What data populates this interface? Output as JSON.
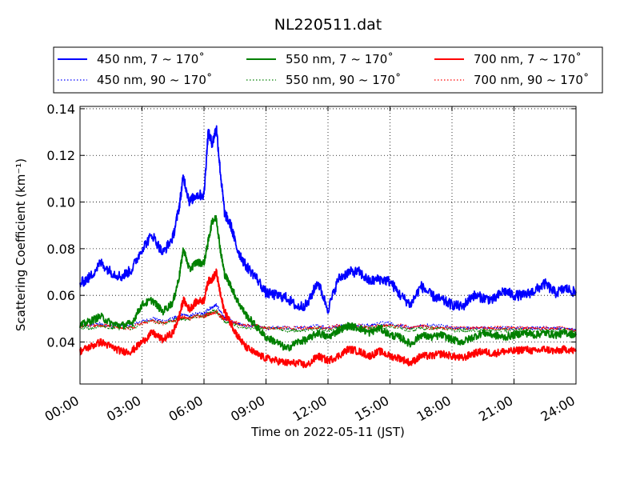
{
  "chart_data": {
    "type": "line",
    "title": "NL220511.dat",
    "xlabel": "Time on 2022-05-11 (JST)",
    "ylabel": "Scattering Coefficient (km⁻¹)",
    "xlim": [
      0,
      24
    ],
    "ylim": [
      0.022,
      0.141
    ],
    "x_unit": "hours",
    "xticks": [
      0,
      3,
      6,
      9,
      12,
      15,
      18,
      21,
      24
    ],
    "xtick_labels": [
      "00:00",
      "03:00",
      "06:00",
      "09:00",
      "12:00",
      "15:00",
      "18:00",
      "21:00",
      "24:00"
    ],
    "yticks": [
      0.04,
      0.06,
      0.08,
      0.1,
      0.12,
      0.14
    ],
    "ytick_labels": [
      "0.04",
      "0.06",
      "0.08",
      "0.10",
      "0.12",
      "0.14"
    ],
    "grid": true,
    "legend_position": "top",
    "x": [
      0,
      0.5,
      1,
      1.5,
      2,
      2.5,
      3,
      3.5,
      4,
      4.5,
      4.8,
      5,
      5.3,
      5.6,
      6,
      6.2,
      6.4,
      6.6,
      6.8,
      7,
      7.3,
      7.6,
      8,
      8.5,
      9,
      9.5,
      10,
      10.5,
      11,
      11.5,
      12,
      12.5,
      13,
      13.5,
      14,
      14.5,
      15,
      15.5,
      16,
      16.5,
      17,
      17.5,
      18,
      18.5,
      19,
      19.5,
      20,
      20.5,
      21,
      21.5,
      22,
      22.5,
      23,
      23.5,
      24
    ],
    "series": [
      {
        "name": "450 nm, 7 ~ 170˚",
        "color": "#0000ff",
        "style": "solid",
        "values": [
          0.065,
          0.068,
          0.074,
          0.07,
          0.068,
          0.071,
          0.08,
          0.086,
          0.078,
          0.085,
          0.098,
          0.111,
          0.1,
          0.103,
          0.103,
          0.13,
          0.125,
          0.132,
          0.112,
          0.095,
          0.09,
          0.08,
          0.073,
          0.068,
          0.061,
          0.06,
          0.059,
          0.055,
          0.056,
          0.066,
          0.054,
          0.067,
          0.07,
          0.07,
          0.066,
          0.067,
          0.066,
          0.06,
          0.056,
          0.064,
          0.06,
          0.058,
          0.056,
          0.055,
          0.06,
          0.059,
          0.058,
          0.062,
          0.06,
          0.06,
          0.062,
          0.065,
          0.061,
          0.063,
          0.061
        ]
      },
      {
        "name": "550 nm, 7 ~ 170˚",
        "color": "#008000",
        "style": "solid",
        "values": [
          0.047,
          0.049,
          0.051,
          0.048,
          0.047,
          0.048,
          0.056,
          0.058,
          0.053,
          0.057,
          0.068,
          0.08,
          0.071,
          0.074,
          0.074,
          0.083,
          0.092,
          0.093,
          0.079,
          0.069,
          0.064,
          0.058,
          0.052,
          0.047,
          0.042,
          0.04,
          0.037,
          0.04,
          0.041,
          0.044,
          0.042,
          0.045,
          0.047,
          0.046,
          0.044,
          0.046,
          0.043,
          0.042,
          0.039,
          0.043,
          0.042,
          0.043,
          0.041,
          0.04,
          0.042,
          0.044,
          0.043,
          0.042,
          0.043,
          0.044,
          0.043,
          0.044,
          0.043,
          0.044,
          0.043
        ]
      },
      {
        "name": "700 nm, 7 ~ 170˚",
        "color": "#ff0000",
        "style": "solid",
        "values": [
          0.036,
          0.038,
          0.04,
          0.038,
          0.036,
          0.036,
          0.04,
          0.044,
          0.041,
          0.044,
          0.051,
          0.058,
          0.054,
          0.057,
          0.058,
          0.066,
          0.067,
          0.07,
          0.06,
          0.053,
          0.048,
          0.043,
          0.038,
          0.035,
          0.033,
          0.032,
          0.031,
          0.031,
          0.03,
          0.034,
          0.032,
          0.034,
          0.037,
          0.036,
          0.034,
          0.036,
          0.034,
          0.033,
          0.031,
          0.034,
          0.034,
          0.035,
          0.034,
          0.033,
          0.035,
          0.036,
          0.035,
          0.036,
          0.036,
          0.037,
          0.036,
          0.037,
          0.036,
          0.037,
          0.036
        ]
      },
      {
        "name": "450 nm, 90 ~ 170˚",
        "color": "#0000ff",
        "style": "dotted",
        "values": [
          0.047,
          0.047,
          0.048,
          0.047,
          0.047,
          0.047,
          0.049,
          0.05,
          0.049,
          0.05,
          0.051,
          0.052,
          0.051,
          0.052,
          0.052,
          0.054,
          0.055,
          0.056,
          0.053,
          0.05,
          0.049,
          0.048,
          0.047,
          0.047,
          0.046,
          0.046,
          0.046,
          0.046,
          0.046,
          0.047,
          0.046,
          0.047,
          0.047,
          0.047,
          0.047,
          0.048,
          0.048,
          0.047,
          0.046,
          0.047,
          0.047,
          0.047,
          0.046,
          0.046,
          0.046,
          0.046,
          0.046,
          0.046,
          0.046,
          0.046,
          0.046,
          0.046,
          0.046,
          0.046,
          0.045
        ]
      },
      {
        "name": "550 nm, 90 ~ 170˚",
        "color": "#008000",
        "style": "dotted",
        "values": [
          0.046,
          0.046,
          0.047,
          0.046,
          0.046,
          0.046,
          0.048,
          0.049,
          0.048,
          0.049,
          0.05,
          0.05,
          0.05,
          0.051,
          0.051,
          0.052,
          0.053,
          0.053,
          0.051,
          0.049,
          0.048,
          0.047,
          0.046,
          0.046,
          0.046,
          0.046,
          0.045,
          0.045,
          0.045,
          0.046,
          0.045,
          0.046,
          0.046,
          0.046,
          0.046,
          0.046,
          0.047,
          0.046,
          0.045,
          0.046,
          0.046,
          0.046,
          0.045,
          0.045,
          0.045,
          0.045,
          0.045,
          0.045,
          0.045,
          0.045,
          0.045,
          0.045,
          0.045,
          0.045,
          0.044
        ]
      },
      {
        "name": "700 nm, 90 ~ 170˚",
        "color": "#ff0000",
        "style": "dotted",
        "values": [
          0.047,
          0.047,
          0.047,
          0.047,
          0.046,
          0.046,
          0.048,
          0.049,
          0.048,
          0.049,
          0.05,
          0.051,
          0.05,
          0.051,
          0.051,
          0.052,
          0.052,
          0.053,
          0.051,
          0.05,
          0.049,
          0.048,
          0.047,
          0.047,
          0.046,
          0.046,
          0.046,
          0.046,
          0.046,
          0.046,
          0.046,
          0.047,
          0.047,
          0.047,
          0.046,
          0.047,
          0.047,
          0.047,
          0.046,
          0.047,
          0.046,
          0.046,
          0.046,
          0.046,
          0.046,
          0.046,
          0.046,
          0.046,
          0.046,
          0.046,
          0.046,
          0.046,
          0.046,
          0.046,
          0.045
        ]
      }
    ],
    "legend_entries": [
      {
        "label": "450 nm, 7 ~ 170˚",
        "color": "#0000ff",
        "style": "solid"
      },
      {
        "label": "550 nm, 7 ~ 170˚",
        "color": "#008000",
        "style": "solid"
      },
      {
        "label": "700 nm, 7 ~ 170˚",
        "color": "#ff0000",
        "style": "solid"
      },
      {
        "label": "450 nm, 90 ~ 170˚",
        "color": "#0000ff",
        "style": "dotted"
      },
      {
        "label": "550 nm, 90 ~ 170˚",
        "color": "#008000",
        "style": "dotted"
      },
      {
        "label": "700 nm, 90 ~ 170˚",
        "color": "#ff0000",
        "style": "dotted"
      }
    ]
  }
}
